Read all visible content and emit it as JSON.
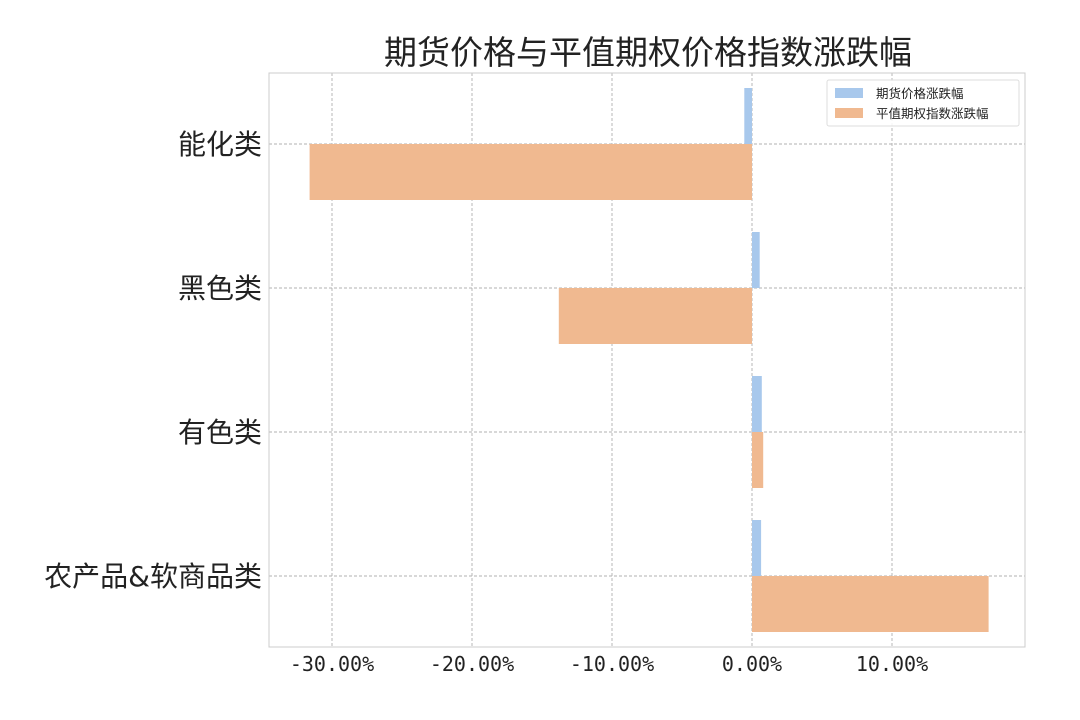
{
  "chart_data": {
    "type": "bar",
    "orientation": "horizontal",
    "title": "期货价格与平值期权价格指数涨跌幅",
    "categories": [
      "能化类",
      "黑色类",
      "有色类",
      "农产品&软商品类"
    ],
    "series": [
      {
        "name": "期货价格涨跌幅",
        "color": "#a8c8ec",
        "values": [
          -0.55,
          0.55,
          0.7,
          0.65
        ]
      },
      {
        "name": "平值期权指数涨跌幅",
        "color": "#f0b990",
        "values": [
          -31.6,
          -13.8,
          0.8,
          16.9
        ]
      }
    ],
    "x_ticks": [
      -30,
      -20,
      -10,
      0,
      10
    ],
    "x_tick_labels": [
      "-30.00%",
      "-20.00%",
      "-10.00%",
      "0.00%",
      "10.00%"
    ],
    "xlim": [
      -34.5,
      19.5
    ],
    "xlabel": "",
    "ylabel": "",
    "grid": true,
    "legend_position": "top-right"
  }
}
